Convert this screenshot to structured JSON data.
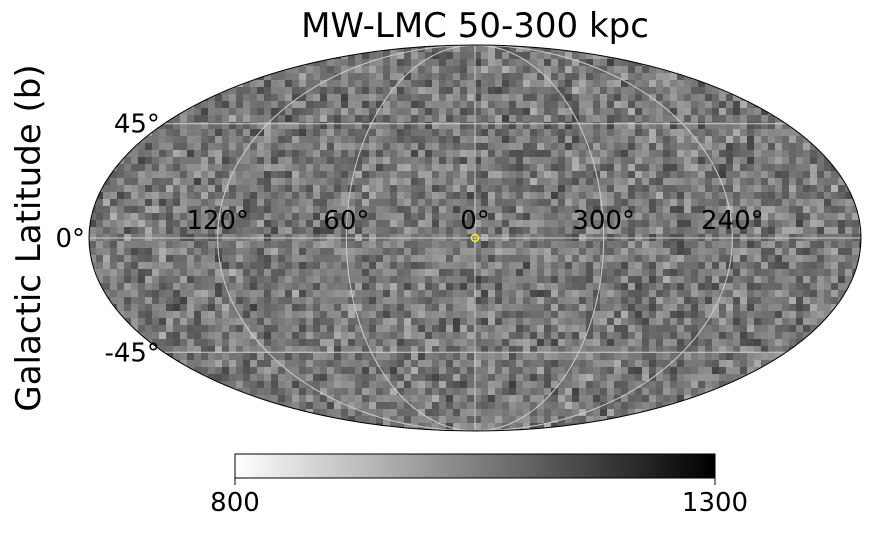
{
  "chart_data": {
    "type": "heatmap",
    "projection": "mollweide",
    "title": "MW-LMC 50-300 kpc",
    "xlabel": "",
    "ylabel": "Galactic Latitude (b)",
    "longitude_ticks": [
      "120°",
      "60°",
      "0°",
      "300°",
      "240°"
    ],
    "longitude_tick_values": [
      120,
      60,
      0,
      -60,
      -120
    ],
    "latitude_ticks": [
      "45°",
      "0°",
      "-45°"
    ],
    "latitude_tick_values": [
      45,
      0,
      -45
    ],
    "grid": true,
    "colormap": "gray_r",
    "colorbar": {
      "orientation": "horizontal",
      "placement": "bottom",
      "min_label": "800",
      "max_label": "1300",
      "min": 800,
      "max": 1300
    },
    "marker": {
      "l": 0,
      "b": 0,
      "shape": "open-circle",
      "color": "#ffff00"
    },
    "map_value_range": [
      950,
      1180
    ],
    "background_color": "#6a6a6a",
    "grid_color": "#cfcfcf"
  }
}
